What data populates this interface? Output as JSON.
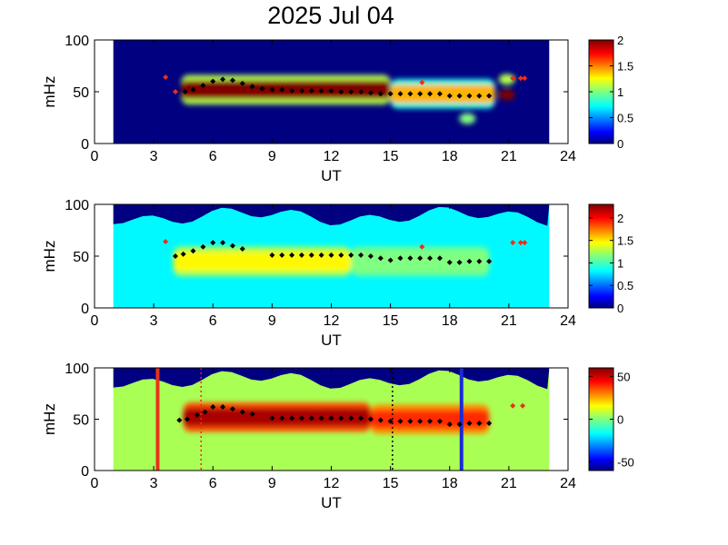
{
  "title": "2025 Jul 04",
  "chart_data": [
    {
      "type": "heatmap",
      "panel": "top",
      "xlabel": "UT",
      "ylabel": "mHz",
      "xlim": [
        0,
        24
      ],
      "ylim": [
        0,
        100
      ],
      "xticks": [
        "0",
        "3",
        "6",
        "9",
        "12",
        "15",
        "18",
        "21",
        "24"
      ],
      "yticks": [
        "0",
        "50",
        "100"
      ],
      "data_extent_ut": [
        0.95,
        23.05
      ],
      "colorbar": {
        "min": 0,
        "max": 2,
        "ticks": [
          "0",
          "0.5",
          "1",
          "1.5",
          "2"
        ]
      },
      "colormap": "jet",
      "features": [
        {
          "desc": "band",
          "ut_start": 4.4,
          "ut_end": 15.0,
          "mhz_center": 52,
          "level": 2.0
        },
        {
          "desc": "band",
          "ut_start": 15.0,
          "ut_end": 20.3,
          "mhz_center": 48,
          "level": 1.4
        },
        {
          "desc": "patch",
          "ut_center": 20.9,
          "mhz_center": 62,
          "level": 1.1
        },
        {
          "desc": "patch",
          "ut_center": 20.9,
          "mhz_center": 47,
          "level": 2.0
        },
        {
          "desc": "patch",
          "ut_center": 18.9,
          "mhz_center": 24,
          "level": 1.0
        }
      ],
      "peak_tracks": [
        {
          "color": "#000000",
          "points": [
            [
              4.6,
              50
            ],
            [
              5.0,
              52
            ],
            [
              5.5,
              56
            ],
            [
              6.0,
              60
            ],
            [
              6.5,
              62
            ],
            [
              7.0,
              61
            ],
            [
              7.5,
              58
            ],
            [
              8.0,
              55
            ],
            [
              8.5,
              53
            ],
            [
              9.0,
              52
            ],
            [
              9.5,
              52
            ],
            [
              10.0,
              51
            ],
            [
              10.5,
              51
            ],
            [
              11.0,
              51
            ],
            [
              11.5,
              51
            ],
            [
              12.0,
              51
            ],
            [
              12.5,
              50
            ],
            [
              13.0,
              50
            ],
            [
              13.5,
              50
            ],
            [
              14.0,
              49
            ],
            [
              14.5,
              48
            ],
            [
              15.0,
              48
            ],
            [
              15.5,
              48
            ],
            [
              16.0,
              48
            ],
            [
              16.5,
              48
            ],
            [
              17.0,
              48
            ],
            [
              17.5,
              48
            ],
            [
              18.0,
              46
            ],
            [
              18.5,
              46
            ],
            [
              19.0,
              46
            ],
            [
              19.5,
              46
            ],
            [
              20.0,
              46
            ]
          ]
        },
        {
          "color": "#e8301c",
          "points": [
            [
              3.6,
              64
            ],
            [
              4.1,
              50
            ],
            [
              16.6,
              59
            ],
            [
              21.2,
              63
            ],
            [
              21.6,
              63
            ],
            [
              21.8,
              63
            ]
          ]
        }
      ]
    },
    {
      "type": "heatmap",
      "panel": "middle",
      "xlabel": "UT",
      "ylabel": "mHz",
      "xlim": [
        0,
        24
      ],
      "ylim": [
        0,
        100
      ],
      "xticks": [
        "0",
        "3",
        "6",
        "9",
        "12",
        "15",
        "18",
        "21",
        "24"
      ],
      "yticks": [
        "0",
        "50",
        "100"
      ],
      "data_extent_ut": [
        0.95,
        23.05
      ],
      "colorbar": {
        "min": 0,
        "max": 2.3,
        "ticks": [
          "0",
          "0.5",
          "1",
          "1.5",
          "2"
        ]
      },
      "colormap": "jet",
      "features": [
        {
          "desc": "background",
          "level": 0.85
        },
        {
          "desc": "band",
          "ut_start": 4.0,
          "ut_end": 13.0,
          "mhz_center": 45,
          "level": 1.45
        },
        {
          "desc": "band",
          "ut_start": 13.0,
          "ut_end": 20.0,
          "mhz_center": 45,
          "level": 1.15
        },
        {
          "desc": "top-cutoff",
          "mhz_from": 85,
          "level": 0.0
        }
      ],
      "peak_tracks": [
        {
          "color": "#000000",
          "points": [
            [
              4.1,
              50
            ],
            [
              4.5,
              52
            ],
            [
              5.0,
              55
            ],
            [
              5.5,
              59
            ],
            [
              6.0,
              63
            ],
            [
              6.5,
              63
            ],
            [
              7.0,
              60
            ],
            [
              7.5,
              57
            ],
            [
              9.0,
              51
            ],
            [
              9.5,
              51
            ],
            [
              10.0,
              51
            ],
            [
              10.5,
              51
            ],
            [
              11.0,
              51
            ],
            [
              11.5,
              51
            ],
            [
              12.0,
              51
            ],
            [
              12.5,
              51
            ],
            [
              13.0,
              51
            ],
            [
              13.5,
              51
            ],
            [
              14.0,
              50
            ],
            [
              14.5,
              48
            ],
            [
              15.0,
              46
            ],
            [
              15.5,
              48
            ],
            [
              16.0,
              48
            ],
            [
              16.5,
              48
            ],
            [
              17.0,
              48
            ],
            [
              17.5,
              48
            ],
            [
              18.0,
              44
            ],
            [
              18.5,
              44
            ],
            [
              19.0,
              45
            ],
            [
              19.5,
              45
            ],
            [
              20.0,
              45
            ]
          ]
        },
        {
          "color": "#e8301c",
          "points": [
            [
              3.6,
              64
            ],
            [
              16.6,
              59
            ],
            [
              21.2,
              63
            ],
            [
              21.6,
              63
            ],
            [
              21.8,
              63
            ]
          ]
        }
      ]
    },
    {
      "type": "heatmap",
      "panel": "bottom",
      "xlabel": "UT",
      "ylabel": "mHz",
      "xlim": [
        0,
        24
      ],
      "ylim": [
        0,
        100
      ],
      "xticks": [
        "0",
        "3",
        "6",
        "9",
        "12",
        "15",
        "18",
        "21",
        "24"
      ],
      "yticks": [
        "0",
        "50",
        "100"
      ],
      "data_extent_ut": [
        0.95,
        23.05
      ],
      "colorbar": {
        "min": -60,
        "max": 60,
        "ticks": [
          "-50",
          "0",
          "50"
        ]
      },
      "colormap": "jet",
      "features": [
        {
          "desc": "background",
          "level": 5
        },
        {
          "desc": "band",
          "ut_start": 4.5,
          "ut_end": 14.0,
          "mhz_center": 52,
          "level": 55
        },
        {
          "desc": "band",
          "ut_start": 14.0,
          "ut_end": 20.0,
          "mhz_center": 50,
          "level": 40
        },
        {
          "desc": "top-cutoff",
          "mhz_from": 85,
          "level": -60
        }
      ],
      "vertical_lines": [
        {
          "ut": 3.2,
          "color": "#e8301c",
          "style": "solid"
        },
        {
          "ut": 5.4,
          "color": "#e8301c",
          "style": "dotted"
        },
        {
          "ut": 15.1,
          "color": "#000000",
          "style": "dotted"
        },
        {
          "ut": 18.6,
          "color": "#1a2bd6",
          "style": "solid"
        }
      ],
      "peak_tracks": [
        {
          "color": "#000000",
          "points": [
            [
              4.3,
              49
            ],
            [
              4.7,
              50
            ],
            [
              5.2,
              54
            ],
            [
              5.6,
              57
            ],
            [
              6.0,
              62
            ],
            [
              6.5,
              62
            ],
            [
              7.0,
              60
            ],
            [
              7.5,
              57
            ],
            [
              8.0,
              55
            ],
            [
              9.0,
              51
            ],
            [
              9.5,
              51
            ],
            [
              10.0,
              51
            ],
            [
              10.5,
              51
            ],
            [
              11.0,
              51
            ],
            [
              11.5,
              51
            ],
            [
              12.0,
              51
            ],
            [
              12.5,
              51
            ],
            [
              13.0,
              51
            ],
            [
              13.5,
              51
            ],
            [
              14.0,
              50
            ],
            [
              14.5,
              49
            ],
            [
              15.0,
              48
            ],
            [
              15.5,
              48
            ],
            [
              16.0,
              48
            ],
            [
              16.5,
              48
            ],
            [
              17.0,
              48
            ],
            [
              17.5,
              48
            ],
            [
              18.0,
              45
            ],
            [
              18.5,
              45
            ],
            [
              19.0,
              46
            ],
            [
              19.5,
              46
            ],
            [
              20.0,
              46
            ]
          ]
        },
        {
          "color": "#e8301c",
          "points": [
            [
              21.2,
              63
            ],
            [
              21.7,
              63
            ]
          ]
        }
      ]
    }
  ]
}
